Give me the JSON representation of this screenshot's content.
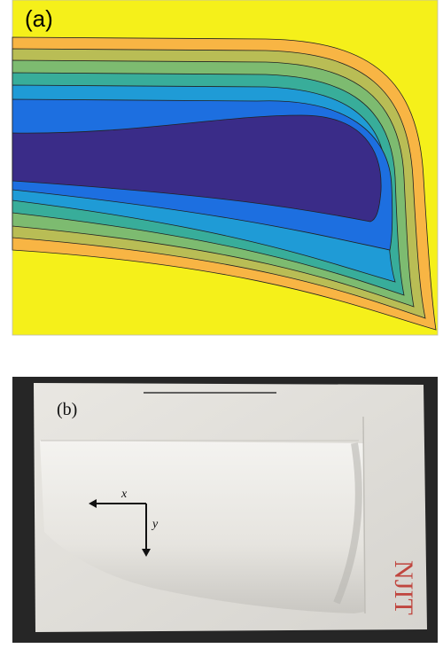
{
  "panels": [
    {
      "label": "(a)"
    },
    {
      "label": "(b)",
      "axes": {
        "x": "x",
        "y": "y"
      },
      "stamp": "NJIT"
    }
  ]
}
